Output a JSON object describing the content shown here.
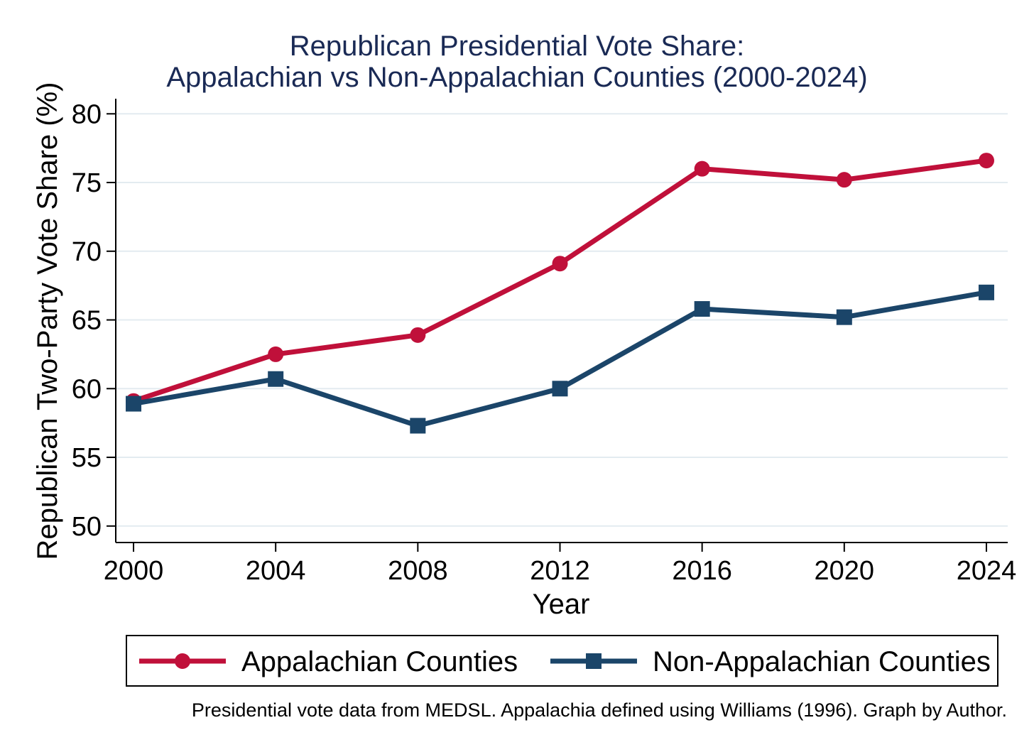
{
  "chart_data": {
    "type": "line",
    "title": "Republican Presidential Vote Share:",
    "subtitle": "Appalachian vs Non-Appalachian Counties (2000-2024)",
    "xlabel": "Year",
    "ylabel": "Republican Two-Party Vote Share (%)",
    "x": [
      2000,
      2004,
      2008,
      2012,
      2016,
      2020,
      2024
    ],
    "x_tick_labels": [
      "2000",
      "2004",
      "2008",
      "2012",
      "2016",
      "2020",
      "2024"
    ],
    "y_ticks": [
      50,
      55,
      60,
      65,
      70,
      75,
      80
    ],
    "y_tick_labels": [
      "50",
      "55",
      "60",
      "65",
      "70",
      "75",
      "80"
    ],
    "xlim": [
      1999.5,
      2024.6
    ],
    "ylim": [
      48.8,
      81.1
    ],
    "grid": true,
    "legend_position": "bottom",
    "series": [
      {
        "name": "Appalachian Counties",
        "color": "#c0103a",
        "marker": "circle",
        "values": [
          59.1,
          62.5,
          63.9,
          69.1,
          76.0,
          75.2,
          76.6
        ]
      },
      {
        "name": "Non-Appalachian Counties",
        "color": "#1b4569",
        "marker": "square",
        "values": [
          58.9,
          60.7,
          57.3,
          60.0,
          65.8,
          65.2,
          67.0
        ]
      }
    ],
    "note": "Presidential vote data from MEDSL. Appalachia defined using Williams (1996). Graph by Author."
  }
}
